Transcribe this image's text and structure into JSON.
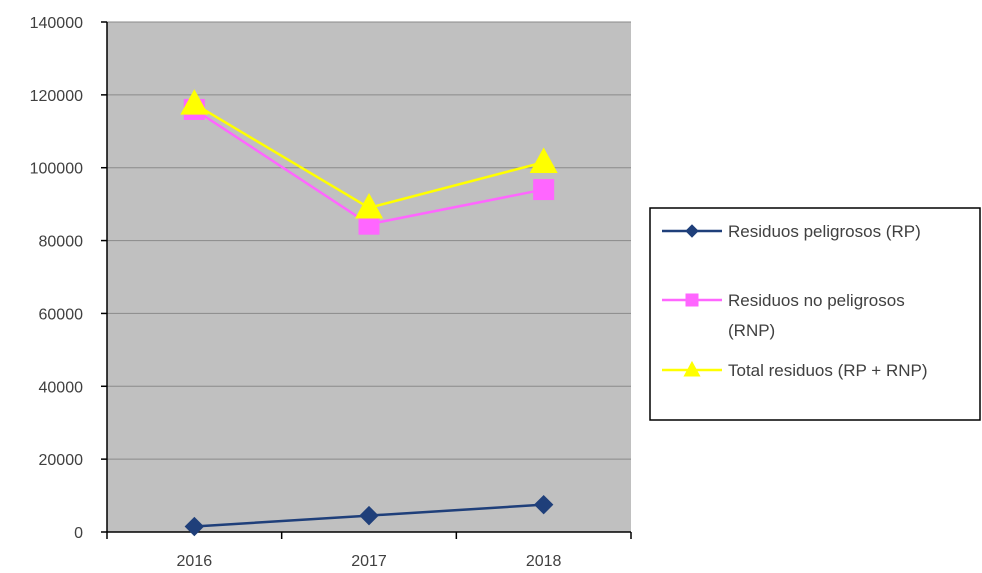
{
  "chart_data": {
    "type": "line",
    "title": "",
    "xlabel": "",
    "ylabel": "",
    "categories": [
      "2016",
      "2017",
      "2018"
    ],
    "ylim": [
      0,
      140000
    ],
    "yticks": [
      0,
      20000,
      40000,
      60000,
      80000,
      100000,
      120000,
      140000
    ],
    "ytick_labels": [
      "0",
      "20000",
      "40000",
      "60000",
      "80000",
      "100000",
      "120000",
      "140000"
    ],
    "grid": true,
    "legend_position": "right",
    "plot_background": "#c0c0c0",
    "series": [
      {
        "name": "Residuos peligrosos (RP)",
        "values": [
          1500,
          4500,
          7500
        ],
        "color": "#1f3f7a",
        "marker": "diamond"
      },
      {
        "name": "Residuos no peligrosos (RNP)",
        "name_lines": [
          "Residuos no peligrosos",
          "(RNP)"
        ],
        "values": [
          116000,
          84500,
          94000
        ],
        "color": "#ff66ff",
        "marker": "square"
      },
      {
        "name": "Total residuos (RP + RNP)",
        "values": [
          117500,
          89000,
          101500
        ],
        "color": "#ffff00",
        "marker": "triangle"
      }
    ]
  }
}
